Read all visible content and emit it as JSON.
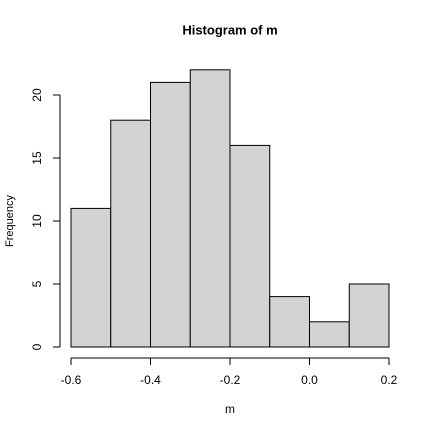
{
  "chart_data": {
    "type": "histogram",
    "title": "Histogram of m",
    "x_label": "m",
    "y_label": "Frequency",
    "bins": [
      -0.6,
      -0.5,
      -0.4,
      -0.3,
      -0.2,
      -0.1,
      0.0,
      0.1,
      0.2
    ],
    "values": [
      11,
      18,
      21,
      22,
      16,
      4,
      2,
      5
    ],
    "color": "#d3d3d3",
    "xlim": [
      -0.6,
      0.2
    ],
    "xticks": [
      -0.6,
      -0.4,
      -0.2,
      {
        "value": 0,
        "label": "0.0"
      },
      0.2
    ],
    "ylim": [
      0,
      20
    ],
    "yticks": [
      0,
      5,
      10,
      15,
      20
    ]
  }
}
